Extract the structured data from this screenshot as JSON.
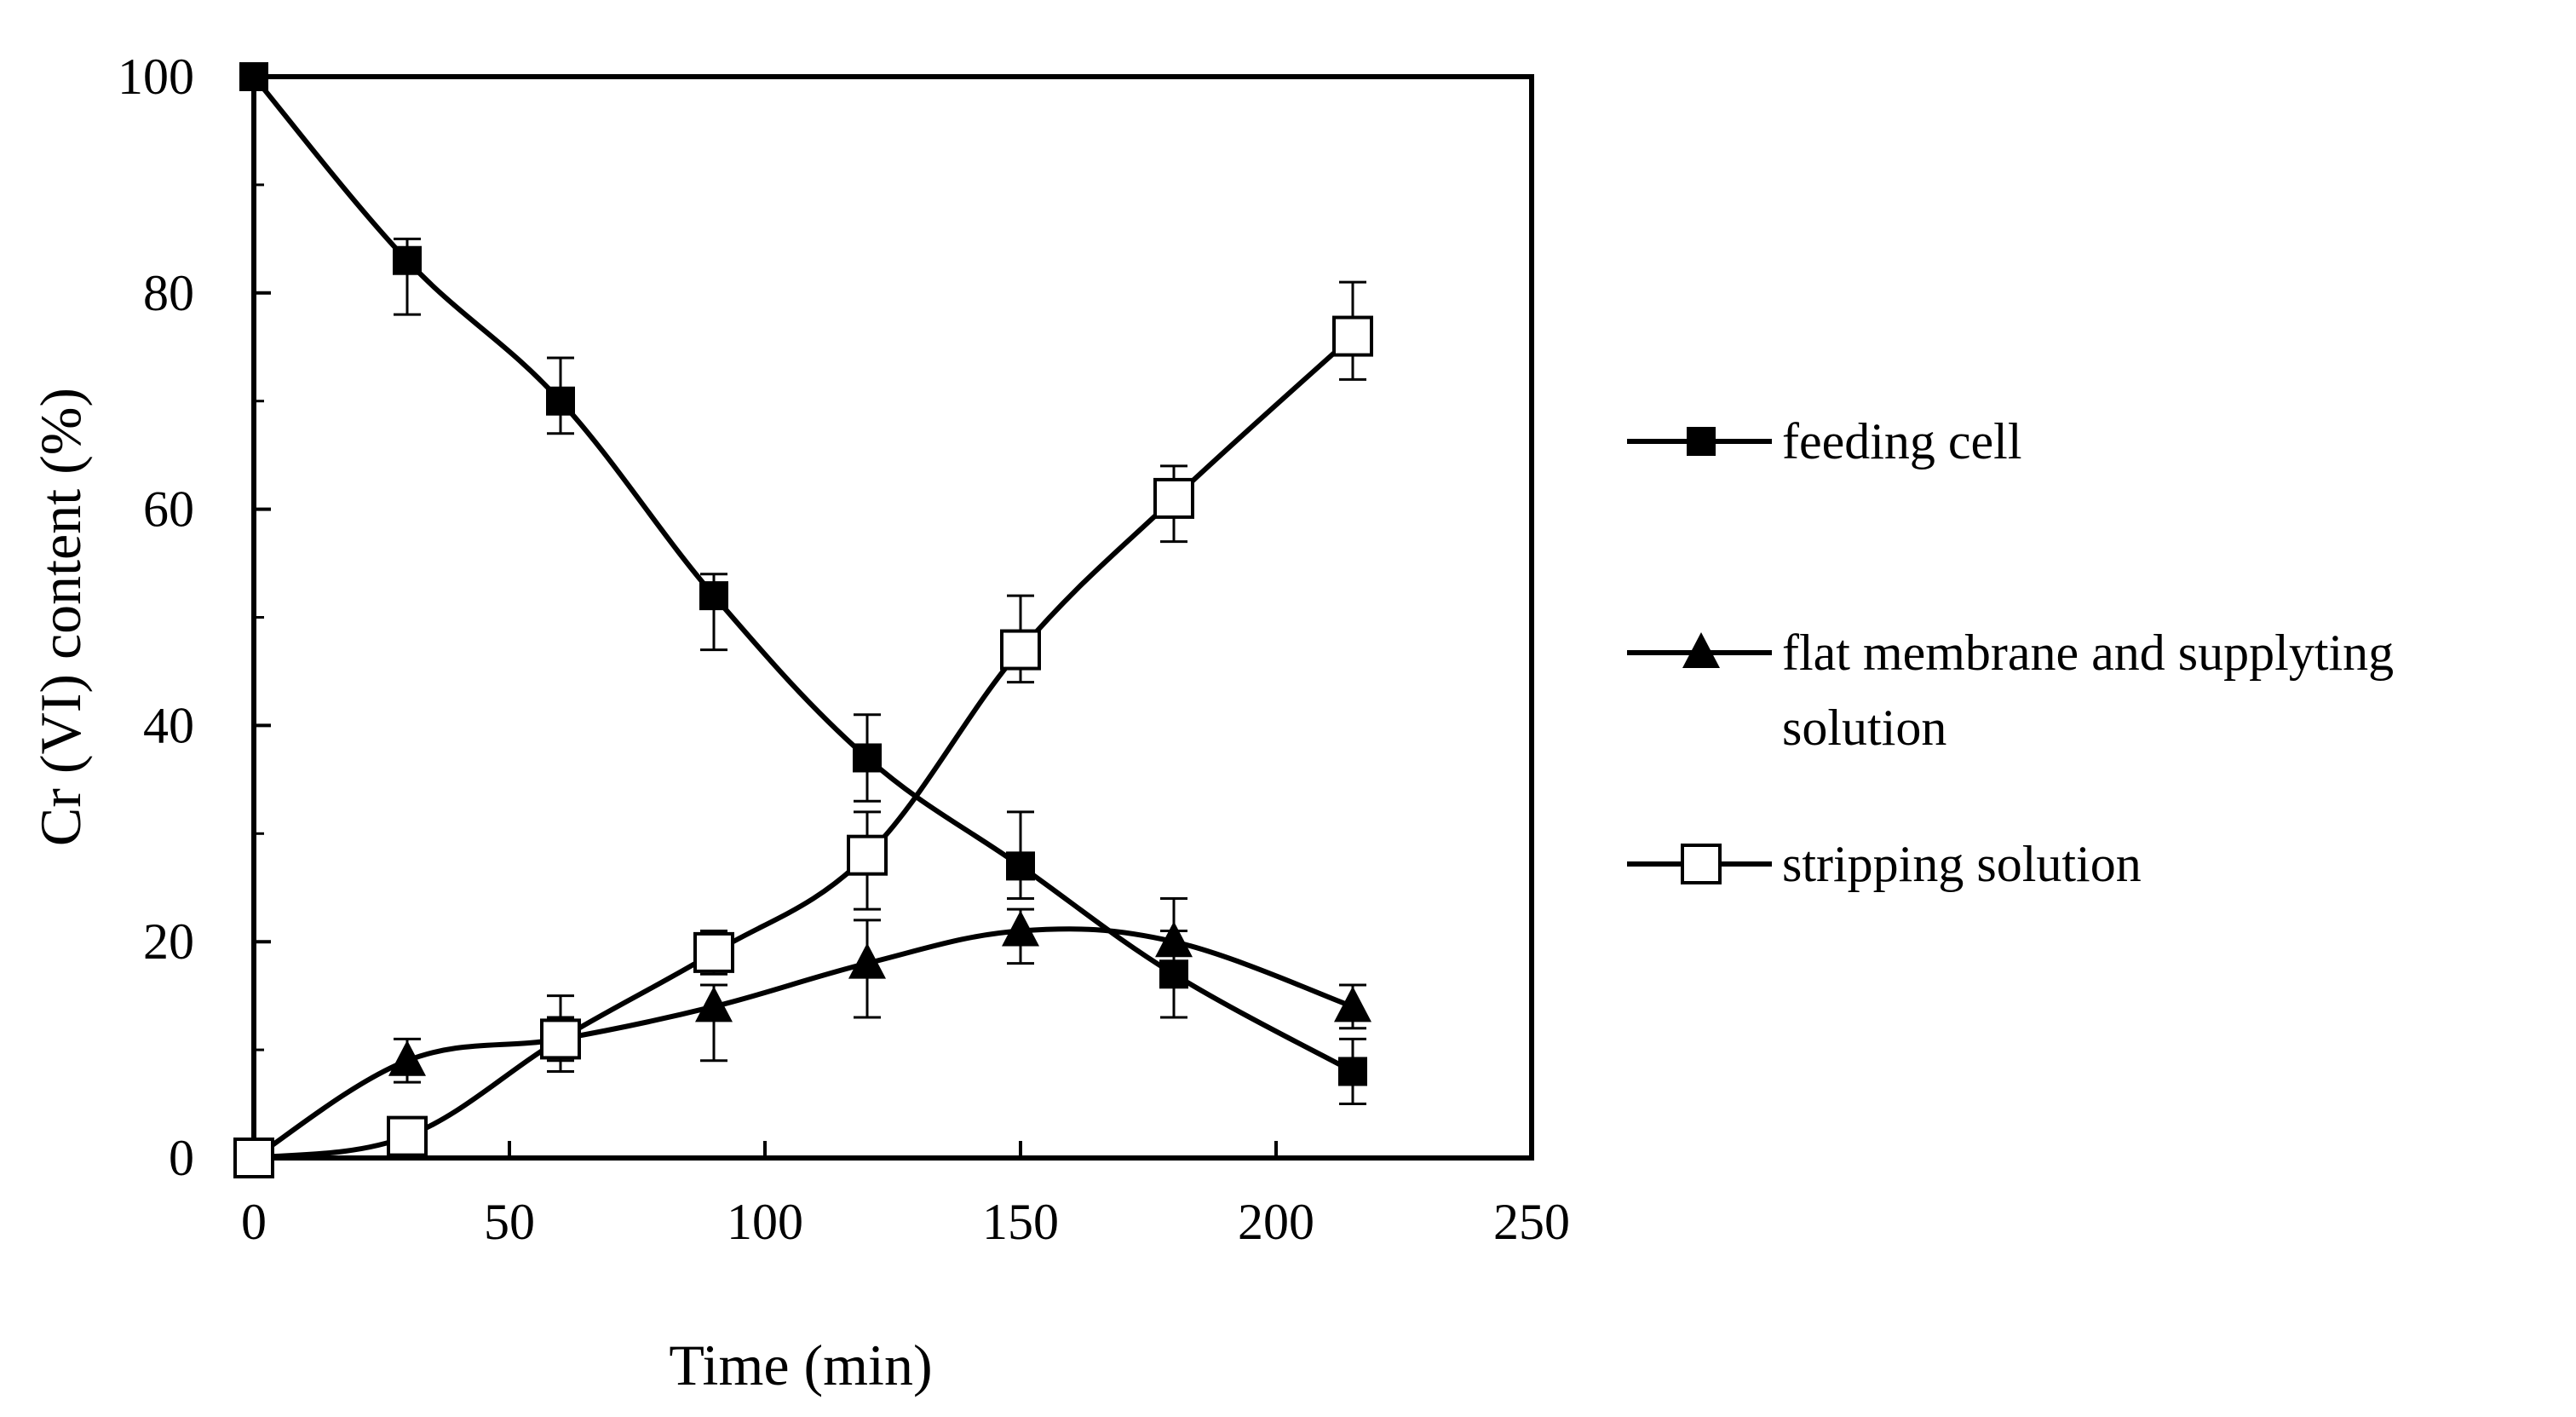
{
  "chart_data": {
    "type": "line",
    "title": "",
    "xlabel": "Time (min)",
    "ylabel": "Cr (VI) content (%)",
    "xlim": [
      0,
      250
    ],
    "ylim": [
      0,
      100
    ],
    "xticks": [
      0,
      50,
      100,
      150,
      200,
      250
    ],
    "yticks": [
      0,
      20,
      40,
      60,
      80,
      100
    ],
    "grid": false,
    "legend_position": "right",
    "x": [
      0,
      30,
      60,
      90,
      120,
      150,
      180,
      215
    ],
    "series": [
      {
        "name": "feeding cell",
        "marker": "filled-square",
        "color": "#000000",
        "values": [
          100,
          83,
          70,
          52,
          37,
          27,
          17,
          8
        ],
        "err_upper": [
          0,
          2,
          4,
          2,
          4,
          5,
          4,
          3
        ],
        "err_lower": [
          0,
          5,
          3,
          5,
          4,
          3,
          4,
          3
        ]
      },
      {
        "name": "flat membrane and supplyting solution",
        "marker": "filled-triangle",
        "color": "#000000",
        "values": [
          0,
          9,
          11,
          14,
          18,
          21,
          20,
          14
        ],
        "err_upper": [
          0,
          2,
          2,
          2,
          4,
          2,
          4,
          2
        ],
        "err_lower": [
          0,
          2,
          2,
          5,
          5,
          3,
          3,
          2
        ]
      },
      {
        "name": "stripping solution",
        "marker": "open-square",
        "color": "#000000",
        "values": [
          0,
          2,
          11,
          19,
          28,
          47,
          61,
          76
        ],
        "err_upper": [
          0,
          0,
          4,
          2,
          4,
          5,
          3,
          5
        ],
        "err_lower": [
          0,
          0,
          3,
          2,
          5,
          3,
          4,
          4
        ]
      }
    ]
  }
}
